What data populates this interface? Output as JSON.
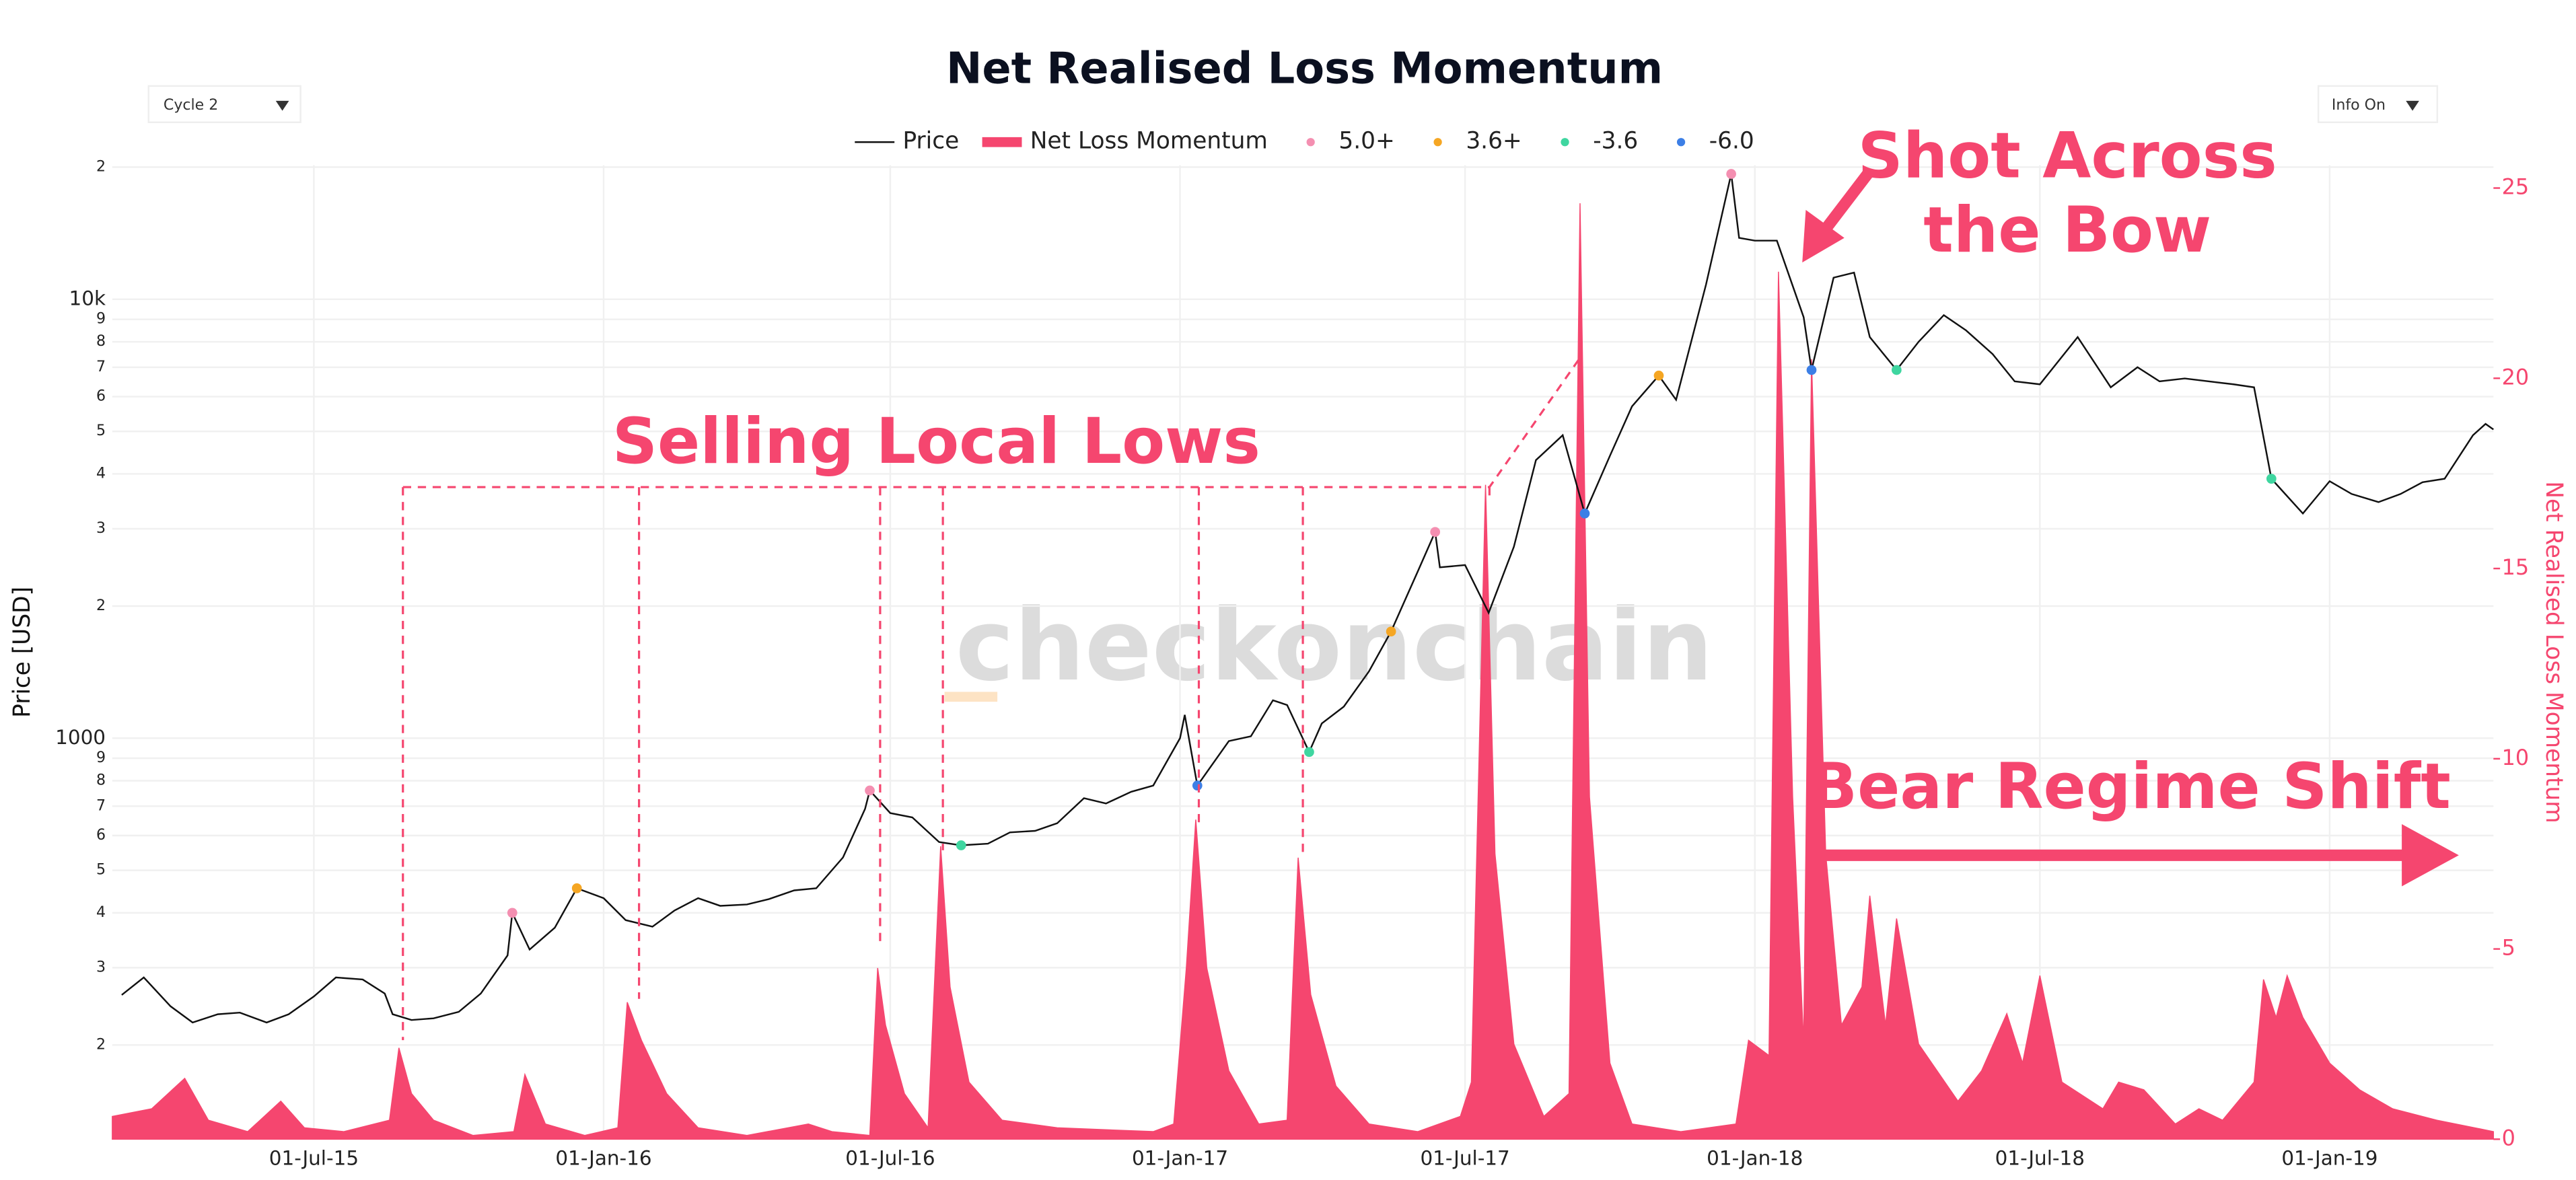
{
  "controls": {
    "cycle": "Cycle 2",
    "info": "Info On"
  },
  "chart_data": {
    "type": "line",
    "title": "Net Realised Loss Momentum",
    "watermark": "checkonchain",
    "ylabel": "Price [USD]",
    "y2label": "Net Realised Loss Momentum",
    "ylog": true,
    "grid": true,
    "legend": "top",
    "xlim": [
      "2015-02-23",
      "2019-04-15"
    ],
    "xticks": [
      {
        "value": "2015-07-01",
        "label": "01-Jul-15"
      },
      {
        "value": "2016-01-01",
        "label": "01-Jan-16"
      },
      {
        "value": "2016-07-01",
        "label": "01-Jul-16"
      },
      {
        "value": "2017-01-01",
        "label": "01-Jan-17"
      },
      {
        "value": "2017-07-01",
        "label": "01-Jul-17"
      },
      {
        "value": "2018-01-01",
        "label": "01-Jan-18"
      },
      {
        "value": "2018-07-01",
        "label": "01-Jul-18"
      },
      {
        "value": "2019-01-01",
        "label": "01-Jan-19"
      }
    ],
    "ylim": [
      122,
      20200
    ],
    "yticks": [
      {
        "value": 200,
        "label": "2"
      },
      {
        "value": 300,
        "label": "3"
      },
      {
        "value": 400,
        "label": "4"
      },
      {
        "value": 500,
        "label": "5"
      },
      {
        "value": 600,
        "label": "6"
      },
      {
        "value": 700,
        "label": "7"
      },
      {
        "value": 800,
        "label": "8"
      },
      {
        "value": 900,
        "label": "9"
      },
      1000,
      {
        "value": 2000,
        "label": "2"
      },
      {
        "value": 3000,
        "label": "3"
      },
      {
        "value": 4000,
        "label": "4"
      },
      {
        "value": 5000,
        "label": "5"
      },
      {
        "value": 6000,
        "label": "6"
      },
      {
        "value": 7000,
        "label": "7"
      },
      {
        "value": 8000,
        "label": "8"
      },
      {
        "value": 9000,
        "label": "9"
      },
      {
        "value": 10000,
        "label": "10k"
      },
      {
        "value": 20000,
        "label": "2"
      }
    ],
    "y2lim": [
      0,
      25.6
    ],
    "y2ticks": [
      0,
      5,
      10,
      15,
      20,
      25
    ],
    "annotations": [
      {
        "lines": [
          "Selling Local Lows"
        ]
      },
      {
        "lines": [
          "Shot Across",
          "the Bow"
        ]
      },
      {
        "lines": [
          "Bear Regime Shift"
        ]
      }
    ],
    "series": [
      {
        "name": "Price",
        "color": "#111111",
        "mode": "line",
        "axis": "y",
        "x": [
          "2015-03-01",
          "2015-03-15",
          "2015-04-01",
          "2015-04-15",
          "2015-05-01",
          "2015-05-15",
          "2015-06-01",
          "2015-06-15",
          "2015-07-01",
          "2015-07-15",
          "2015-08-01",
          "2015-08-15",
          "2015-08-20",
          "2015-09-01",
          "2015-09-15",
          "2015-10-01",
          "2015-10-15",
          "2015-11-01",
          "2015-11-04",
          "2015-11-15",
          "2015-12-01",
          "2015-12-15",
          "2016-01-01",
          "2016-01-15",
          "2016-02-01",
          "2016-02-15",
          "2016-03-01",
          "2016-03-15",
          "2016-04-01",
          "2016-04-15",
          "2016-05-01",
          "2016-05-15",
          "2016-06-01",
          "2016-06-15",
          "2016-06-18",
          "2016-07-01",
          "2016-07-15",
          "2016-08-01",
          "2016-08-15",
          "2016-09-01",
          "2016-09-15",
          "2016-10-01",
          "2016-10-15",
          "2016-11-01",
          "2016-11-15",
          "2016-12-01",
          "2016-12-15",
          "2017-01-01",
          "2017-01-04",
          "2017-01-12",
          "2017-02-01",
          "2017-02-15",
          "2017-03-01",
          "2017-03-10",
          "2017-03-24",
          "2017-04-01",
          "2017-04-15",
          "2017-05-01",
          "2017-05-15",
          "2017-06-01",
          "2017-06-12",
          "2017-06-15",
          "2017-07-01",
          "2017-07-16",
          "2017-08-01",
          "2017-08-15",
          "2017-09-01",
          "2017-09-15",
          "2017-10-01",
          "2017-10-15",
          "2017-11-01",
          "2017-11-12",
          "2017-12-01",
          "2017-12-17",
          "2017-12-22",
          "2018-01-01",
          "2018-01-15",
          "2018-02-01",
          "2018-02-06",
          "2018-02-20",
          "2018-03-05",
          "2018-03-15",
          "2018-04-01",
          "2018-04-15",
          "2018-05-01",
          "2018-05-15",
          "2018-06-01",
          "2018-06-15",
          "2018-07-01",
          "2018-07-25",
          "2018-08-15",
          "2018-09-01",
          "2018-09-15",
          "2018-10-01",
          "2018-11-01",
          "2018-11-14",
          "2018-11-25",
          "2018-12-15",
          "2019-01-01",
          "2019-01-15",
          "2019-02-01",
          "2019-02-15",
          "2019-03-01",
          "2019-03-15",
          "2019-04-02",
          "2019-04-10",
          "2019-04-15"
        ],
        "values": [
          260,
          285,
          245,
          225,
          235,
          237,
          225,
          235,
          258,
          285,
          282,
          262,
          235,
          228,
          230,
          238,
          262,
          320,
          400,
          330,
          370,
          455,
          432,
          385,
          372,
          405,
          432,
          415,
          418,
          430,
          450,
          455,
          535,
          690,
          760,
          675,
          660,
          580,
          570,
          575,
          610,
          615,
          640,
          730,
          710,
          755,
          780,
          1000,
          1130,
          780,
          985,
          1010,
          1220,
          1190,
          930,
          1080,
          1180,
          1420,
          1750,
          2400,
          2950,
          2450,
          2480,
          1930,
          2730,
          4300,
          4900,
          3250,
          4400,
          5700,
          6700,
          5900,
          10800,
          19300,
          13800,
          13600,
          13600,
          9100,
          6900,
          11200,
          11500,
          8200,
          6900,
          8000,
          9200,
          8500,
          7500,
          6500,
          6400,
          8200,
          6300,
          7000,
          6500,
          6600,
          6400,
          6300,
          3900,
          3250,
          3850,
          3600,
          3450,
          3600,
          3830,
          3900,
          4900,
          5200,
          5050
        ]
      },
      {
        "name": "Net Loss Momentum",
        "color": "#f5466f",
        "mode": "area",
        "axis": "y2",
        "x": [
          "2015-02-23",
          "2015-03-20",
          "2015-04-10",
          "2015-04-25",
          "2015-05-20",
          "2015-06-10",
          "2015-06-25",
          "2015-07-20",
          "2015-08-18",
          "2015-08-24",
          "2015-09-01",
          "2015-09-15",
          "2015-10-10",
          "2015-11-05",
          "2015-11-12",
          "2015-11-25",
          "2015-12-20",
          "2016-01-10",
          "2016-01-16",
          "2016-01-25",
          "2016-02-10",
          "2016-03-01",
          "2016-04-01",
          "2016-05-10",
          "2016-05-25",
          "2016-06-18",
          "2016-06-23",
          "2016-06-28",
          "2016-07-10",
          "2016-07-25",
          "2016-08-02",
          "2016-08-08",
          "2016-08-20",
          "2016-09-10",
          "2016-10-15",
          "2016-12-15",
          "2016-12-28",
          "2017-01-05",
          "2017-01-11",
          "2017-01-18",
          "2017-02-01",
          "2017-02-20",
          "2017-03-10",
          "2017-03-17",
          "2017-03-25",
          "2017-04-10",
          "2017-05-01",
          "2017-06-01",
          "2017-06-28",
          "2017-07-05",
          "2017-07-14",
          "2017-07-20",
          "2017-08-01",
          "2017-08-20",
          "2017-09-05",
          "2017-09-12",
          "2017-09-18",
          "2017-10-01",
          "2017-10-15",
          "2017-11-15",
          "2017-12-20",
          "2017-12-28",
          "2018-01-10",
          "2018-01-16",
          "2018-01-25",
          "2018-02-01",
          "2018-02-06",
          "2018-02-15",
          "2018-02-25",
          "2018-03-10",
          "2018-03-15",
          "2018-03-25",
          "2018-04-01",
          "2018-04-15",
          "2018-05-10",
          "2018-05-25",
          "2018-06-10",
          "2018-06-20",
          "2018-07-01",
          "2018-07-15",
          "2018-08-10",
          "2018-08-20",
          "2018-09-05",
          "2018-09-25",
          "2018-10-10",
          "2018-10-25",
          "2018-11-14",
          "2018-11-20",
          "2018-11-28",
          "2018-12-05",
          "2018-12-15",
          "2019-01-01",
          "2019-01-20",
          "2019-02-10",
          "2019-03-10",
          "2019-04-15"
        ],
        "values": [
          0.6,
          0.8,
          1.6,
          0.5,
          0.2,
          1.0,
          0.3,
          0.2,
          0.5,
          2.4,
          1.2,
          0.5,
          0.1,
          0.2,
          1.7,
          0.4,
          0.1,
          0.3,
          3.6,
          2.6,
          1.2,
          0.3,
          0.1,
          0.4,
          0.2,
          0.1,
          4.5,
          3.0,
          1.2,
          0.3,
          7.7,
          4.0,
          1.5,
          0.5,
          0.3,
          0.2,
          0.4,
          4.5,
          8.4,
          4.5,
          1.8,
          0.4,
          0.5,
          7.4,
          3.8,
          1.4,
          0.4,
          0.2,
          0.6,
          1.5,
          17.2,
          7.5,
          2.5,
          0.6,
          1.2,
          24.6,
          9.0,
          2.0,
          0.4,
          0.2,
          0.4,
          2.6,
          2.2,
          22.8,
          9.0,
          2.5,
          20.5,
          7.5,
          3.0,
          4.0,
          6.4,
          3.0,
          5.8,
          2.5,
          1.0,
          1.8,
          3.3,
          2.0,
          4.3,
          1.5,
          0.8,
          1.5,
          1.3,
          0.4,
          0.8,
          0.5,
          1.5,
          4.2,
          3.2,
          4.3,
          3.2,
          2.0,
          1.3,
          0.8,
          0.5,
          0.2
        ]
      },
      {
        "name": "5.0+",
        "color": "#f48fb1",
        "mode": "markers",
        "axis": "y",
        "x": [
          "2015-11-04",
          "2016-06-18",
          "2017-06-12",
          "2017-12-17"
        ],
        "values": [
          400,
          760,
          2950,
          19300
        ]
      },
      {
        "name": "3.6+",
        "color": "#f5a623",
        "mode": "markers",
        "axis": "y",
        "x": [
          "2015-12-15",
          "2017-05-15",
          "2017-11-01"
        ],
        "values": [
          455,
          1750,
          6700
        ]
      },
      {
        "name": "-3.6",
        "color": "#3fd6a0",
        "mode": "markers",
        "axis": "y",
        "x": [
          "2016-08-15",
          "2017-03-24",
          "2018-04-01",
          "2018-11-25"
        ],
        "values": [
          570,
          930,
          6900,
          3900
        ]
      },
      {
        "name": "-6.0",
        "color": "#3c7fe6",
        "mode": "markers",
        "axis": "y",
        "x": [
          "2017-01-12",
          "2017-09-15",
          "2018-02-06"
        ],
        "values": [
          780,
          3250,
          6900
        ]
      }
    ]
  }
}
